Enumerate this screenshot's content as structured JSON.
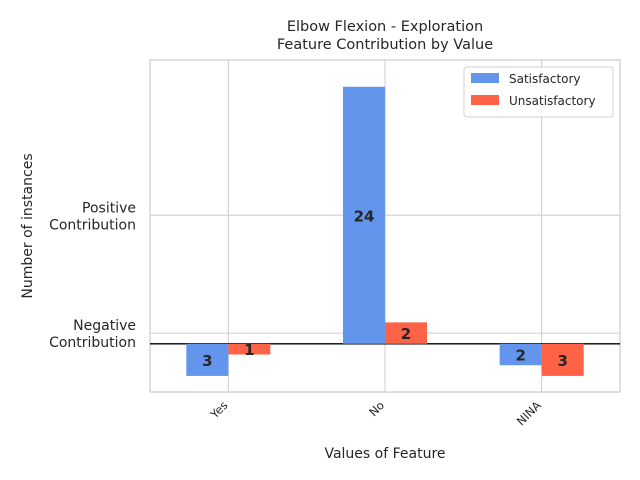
{
  "chart_data": {
    "type": "bar",
    "title": "Elbow Flexion - Exploration\nFeature Contribution by Value",
    "xlabel": "Values of Feature",
    "ylabel": "Number of instances",
    "categories": [
      "Yes",
      "No",
      "NINA"
    ],
    "y_tick_labels": [
      "Positive\nContribution",
      "Negative\nContribution"
    ],
    "series": [
      {
        "name": "Satisfactory",
        "color": "#6495ED",
        "values": [
          -3,
          24,
          -2
        ]
      },
      {
        "name": "Unsatisfactory",
        "color": "#FF6347",
        "values": [
          -1,
          2,
          -3
        ]
      }
    ],
    "ylim": [
      -4.5,
      26.5
    ],
    "grid": true,
    "legend": "top-right"
  }
}
